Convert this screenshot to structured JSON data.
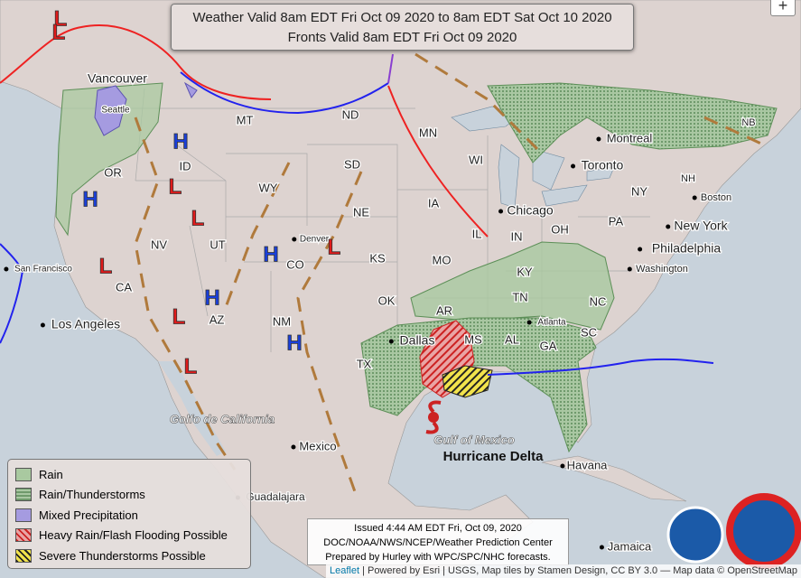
{
  "header": {
    "line1": "Weather Valid 8am EDT Fri Oct 09 2020 to 8am EDT Sat Oct 10 2020",
    "line2": "Fronts Valid 8am EDT Fri Oct 09 2020"
  },
  "zoom_control": "+",
  "places": [
    "Vancouver",
    "Seattle",
    "MT",
    "ND",
    "MN",
    "WI",
    "ID",
    "OR",
    "SD",
    "WY",
    "NE",
    "IA",
    "IL",
    "IN",
    "OH",
    "PA",
    "NY",
    "NV",
    "UT",
    "Denver",
    "CO",
    "KS",
    "MO",
    "KY",
    "CA",
    "AZ",
    "NM",
    "OK",
    "AR",
    "TN",
    "NC",
    "SC",
    "MS",
    "AL",
    "GA",
    "TX",
    "NH",
    "NB",
    "San Francisco",
    "Los Angeles",
    "Dallas",
    "Chicago",
    "Toronto",
    "Montreal",
    "Boston",
    "New York",
    "Philadelphia",
    "Washington",
    "Atlanta",
    "Mexico",
    "Guadalajara",
    "Havana",
    "Jamaica",
    "Golfo de California",
    "Gulf of Mexico",
    "Hurricane Delta"
  ],
  "pressure_centers": [
    "L",
    "L",
    "H",
    "L",
    "H",
    "L",
    "H",
    "L",
    "L",
    "H",
    "L",
    "L",
    "H"
  ],
  "legend": [
    "Rain",
    "Rain/Thunderstorms",
    "Mixed Precipitation",
    "Heavy Rain/Flash Flooding Possible",
    "Severe Thunderstorms Possible"
  ],
  "issued": [
    "Issued 4:44 AM EDT Fri, Oct 09, 2020",
    "DOC/NOAA/NWS/NCEP/Weather Prediction Center",
    "Prepared by Hurley with WPC/SPC/NHC forecasts."
  ],
  "attribution": {
    "leaflet": "Leaflet",
    "text": "| Powered by Esri | USGS, Map tiles by Stamen Design, CC BY 3.0 — Map data © OpenStreetMap"
  }
}
